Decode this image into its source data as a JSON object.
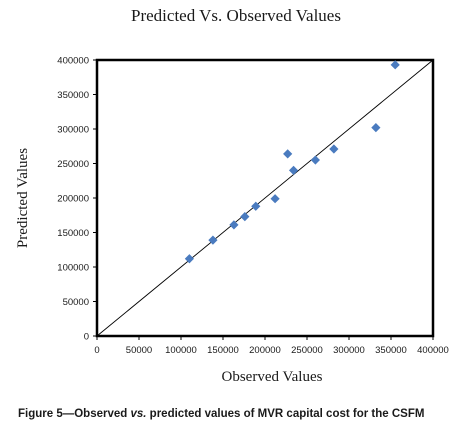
{
  "chart_data": {
    "type": "scatter",
    "title": "Predicted Vs. Observed Values",
    "xlabel": "Observed Values",
    "ylabel": "Predicted Values",
    "xlim": [
      0,
      400000
    ],
    "ylim": [
      0,
      400000
    ],
    "x_ticks": [
      "0",
      "50000",
      "100000",
      "150000",
      "200000",
      "250000",
      "300000",
      "350000",
      "400000"
    ],
    "y_ticks": [
      "0",
      "50000",
      "100000",
      "150000",
      "200000",
      "250000",
      "300000",
      "350000",
      "400000"
    ],
    "grid": false,
    "legend": "none",
    "reference_line": "y = x",
    "marker_color": "#4a7bbf",
    "points": [
      {
        "x": 110000,
        "y": 112000
      },
      {
        "x": 138000,
        "y": 139000
      },
      {
        "x": 163000,
        "y": 161000
      },
      {
        "x": 176000,
        "y": 173000
      },
      {
        "x": 189000,
        "y": 188000
      },
      {
        "x": 212000,
        "y": 199000
      },
      {
        "x": 227000,
        "y": 264000
      },
      {
        "x": 234000,
        "y": 240000
      },
      {
        "x": 260000,
        "y": 255000
      },
      {
        "x": 282000,
        "y": 271000
      },
      {
        "x": 332000,
        "y": 302000
      },
      {
        "x": 355000,
        "y": 393000
      }
    ]
  },
  "caption": {
    "part1": "Figure 5—Observed ",
    "emphasis": "vs.",
    "part2": " predicted values of MVR capital cost for the CSFM"
  }
}
